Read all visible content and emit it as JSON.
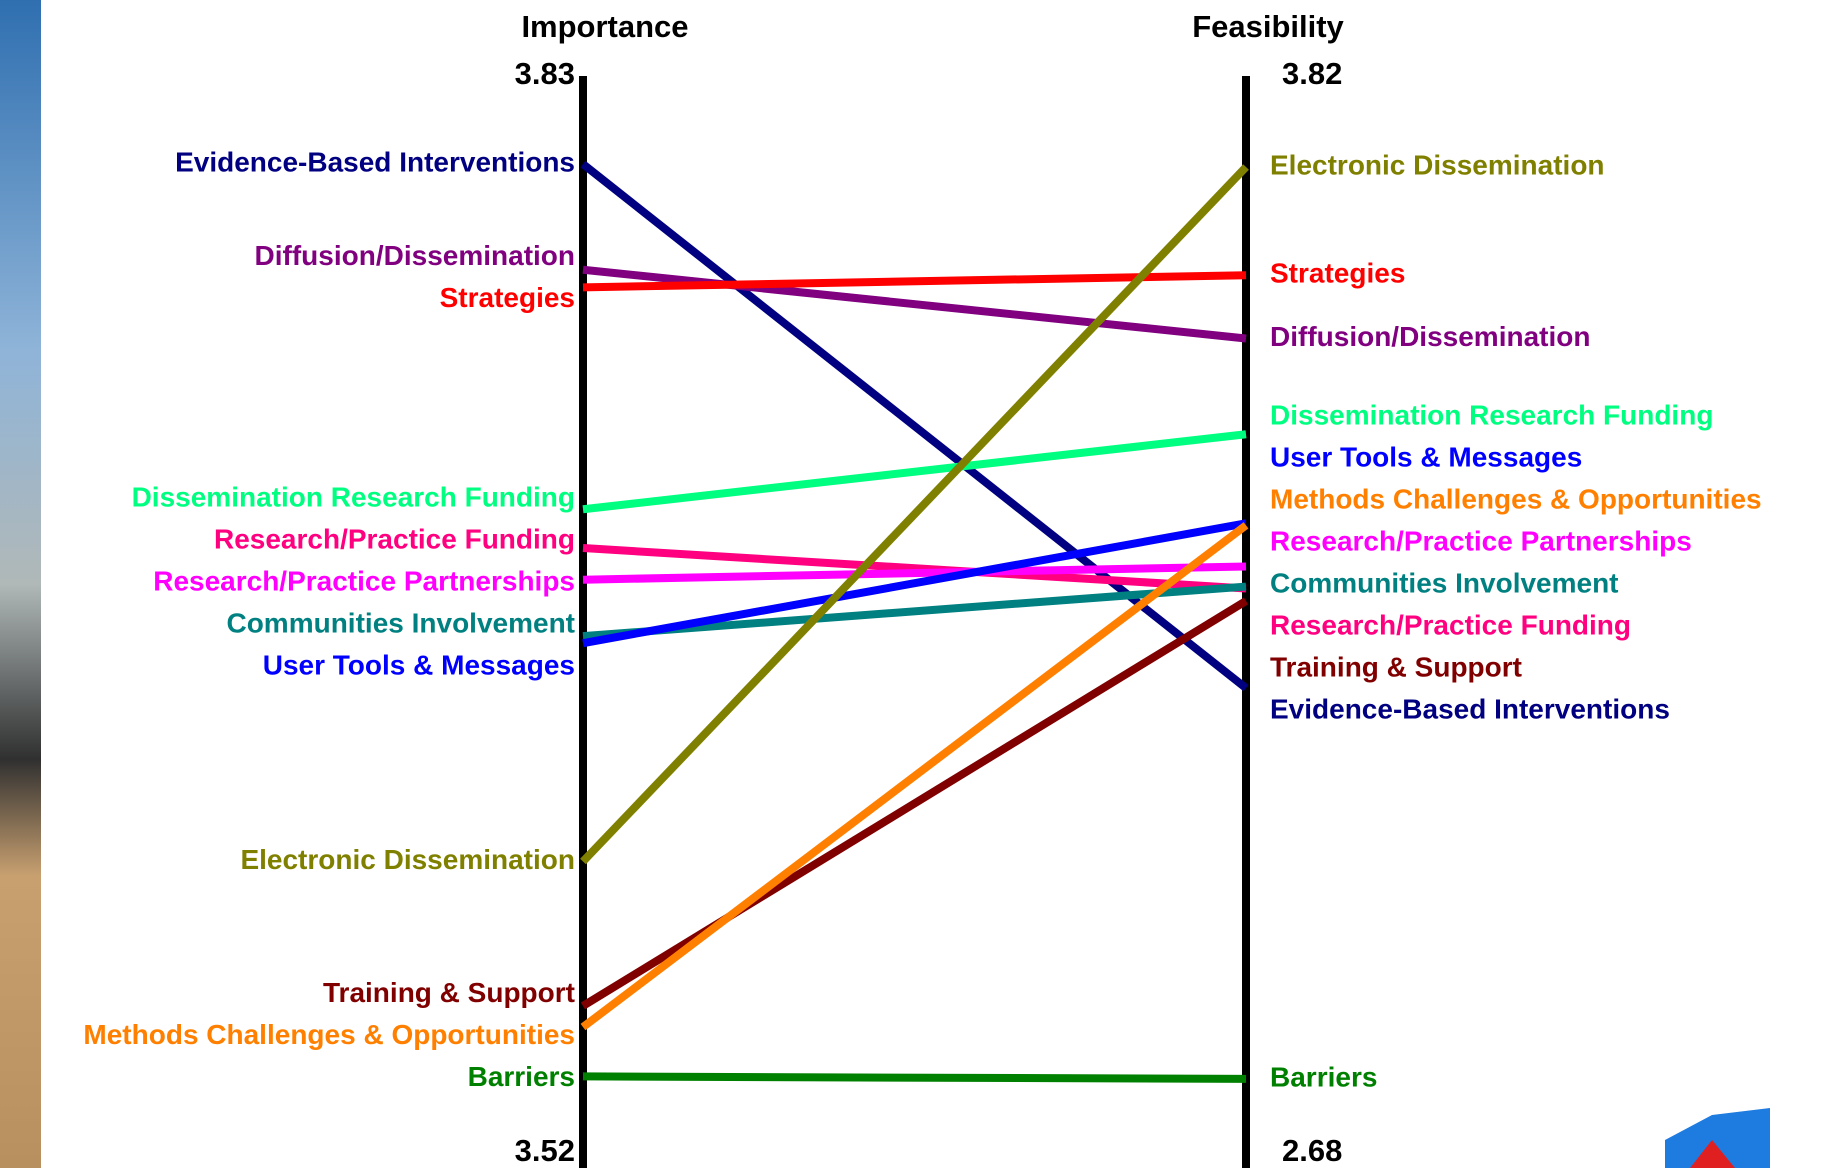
{
  "chart_data": {
    "type": "slope",
    "categories": [
      "Importance",
      "Feasibility"
    ],
    "ylim": [
      3.52,
      3.83
    ],
    "yticks": [
      3.52,
      3.83
    ],
    "y2lim": [
      2.68,
      3.82
    ],
    "y2ticks": [
      2.68,
      3.82
    ],
    "series": [
      {
        "name": "Evidence-Based Interventions",
        "color": "#000080",
        "values": [
          3.805,
          3.181
        ]
      },
      {
        "name": "Diffusion/Dissemination",
        "color": "#800080",
        "values": [
          3.775,
          3.546
        ]
      },
      {
        "name": "Strategies",
        "color": "#ff0000",
        "values": [
          3.77,
          3.612
        ]
      },
      {
        "name": "Dissemination Research Funding",
        "color": "#00ff80",
        "values": [
          3.707,
          3.446
        ]
      },
      {
        "name": "Research/Practice Funding",
        "color": "#ff0080",
        "values": [
          3.696,
          3.285
        ]
      },
      {
        "name": "Research/Practice Partnerships",
        "color": "#ff00ff",
        "values": [
          3.687,
          3.308
        ]
      },
      {
        "name": "Communities Involvement",
        "color": "#008080",
        "values": [
          3.671,
          3.287
        ]
      },
      {
        "name": "User Tools & Messages",
        "color": "#0000ff",
        "values": [
          3.669,
          3.353
        ]
      },
      {
        "name": "Electronic Dissemination",
        "color": "#808000",
        "values": [
          3.607,
          3.725
        ]
      },
      {
        "name": "Training & Support",
        "color": "#800000",
        "values": [
          3.566,
          3.272
        ]
      },
      {
        "name": "Methods Challenges & Opportunities",
        "color": "#ff8000",
        "values": [
          3.56,
          3.351
        ]
      },
      {
        "name": "Barriers",
        "color": "#008000",
        "values": [
          3.546,
          2.773
        ]
      }
    ]
  }
}
